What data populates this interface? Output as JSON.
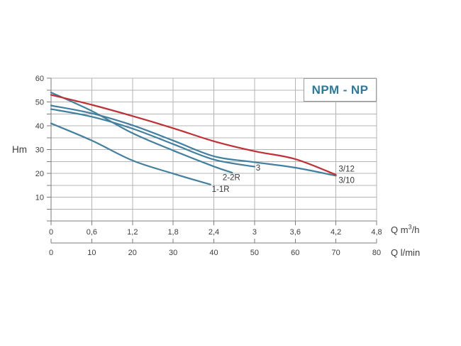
{
  "title": {
    "text": "NPM - NP"
  },
  "axes": {
    "y": {
      "label": "Hm",
      "min": 0,
      "max": 60,
      "minor_step": 5,
      "label_step": 10,
      "tick_labels": [
        "10",
        "20",
        "30",
        "40",
        "50",
        "60"
      ]
    },
    "x_top_unit": {
      "label_parts": {
        "prefix": "Q m",
        "sup": "3",
        "suffix": "/h"
      },
      "min": 0,
      "max": 4.8,
      "step": 0.6,
      "tick_labels": [
        "0",
        "0,6",
        "1,2",
        "1,8",
        "2,4",
        "3",
        "3,6",
        "4,2",
        "4,8"
      ]
    },
    "x_bottom_unit": {
      "label": "Q l/min",
      "min": 0,
      "max": 80,
      "step": 10,
      "tick_labels": [
        "0",
        "10",
        "20",
        "30",
        "40",
        "50",
        "60",
        "70",
        "80"
      ]
    }
  },
  "chart_data": {
    "type": "line",
    "title": "NPM - NP",
    "ylabel": "Hm",
    "xlabel_primary": "Q m3/h",
    "xlabel_secondary": "Q l/min",
    "xlim": [
      0,
      4.8
    ],
    "ylim": [
      0,
      60
    ],
    "grid": true,
    "series": [
      {
        "name": "3/10",
        "color": "#41809e",
        "points": [
          [
            0,
            48.5
          ],
          [
            0.6,
            45.2
          ],
          [
            1.2,
            40.2
          ],
          [
            1.8,
            33.8
          ],
          [
            2.4,
            27.2
          ],
          [
            3.0,
            24.7
          ],
          [
            3.6,
            22.4
          ],
          [
            4.2,
            19.0
          ]
        ]
      },
      {
        "name": "3",
        "color": "#41809e",
        "points": [
          [
            0,
            47.0
          ],
          [
            0.6,
            43.8
          ],
          [
            1.2,
            38.8
          ],
          [
            1.8,
            32.3
          ],
          [
            2.4,
            25.8
          ],
          [
            3.0,
            22.8
          ]
        ]
      },
      {
        "name": "2-2R",
        "color": "#41809e",
        "points": [
          [
            0,
            54.0
          ],
          [
            0.6,
            46.2
          ],
          [
            1.2,
            36.9
          ],
          [
            1.8,
            29.6
          ],
          [
            2.4,
            22.9
          ],
          [
            2.67,
            20.3
          ]
        ]
      },
      {
        "name": "1-1R",
        "color": "#41809e",
        "points": [
          [
            0,
            41.0
          ],
          [
            0.6,
            33.8
          ],
          [
            1.2,
            25.4
          ],
          [
            1.8,
            19.9
          ],
          [
            2.35,
            15.3
          ]
        ]
      },
      {
        "name": "3/12",
        "color": "#c03034",
        "points": [
          [
            0,
            53.0
          ],
          [
            0.6,
            48.8
          ],
          [
            1.2,
            44.1
          ],
          [
            1.8,
            39.0
          ],
          [
            2.4,
            33.5
          ],
          [
            3.0,
            29.3
          ],
          [
            3.6,
            26.0
          ],
          [
            4.2,
            19.4
          ]
        ]
      }
    ],
    "curve_labels": [
      {
        "text": "3/12",
        "x": 4.24,
        "y": 21.9
      },
      {
        "text": "3/10",
        "x": 4.24,
        "y": 17.1
      },
      {
        "text": "3",
        "x": 3.02,
        "y": 22.4
      },
      {
        "text": "2-2R",
        "x": 2.53,
        "y": 18.3
      },
      {
        "text": "1-1R",
        "x": 2.37,
        "y": 13.5
      }
    ]
  },
  "colors": {
    "curve_blue": "#41809e",
    "curve_red": "#c03034",
    "title_teal": "#2b7aa0",
    "grid": "#b4b4b4",
    "axis": "#7d7d7d",
    "text": "#3d3d3d"
  }
}
